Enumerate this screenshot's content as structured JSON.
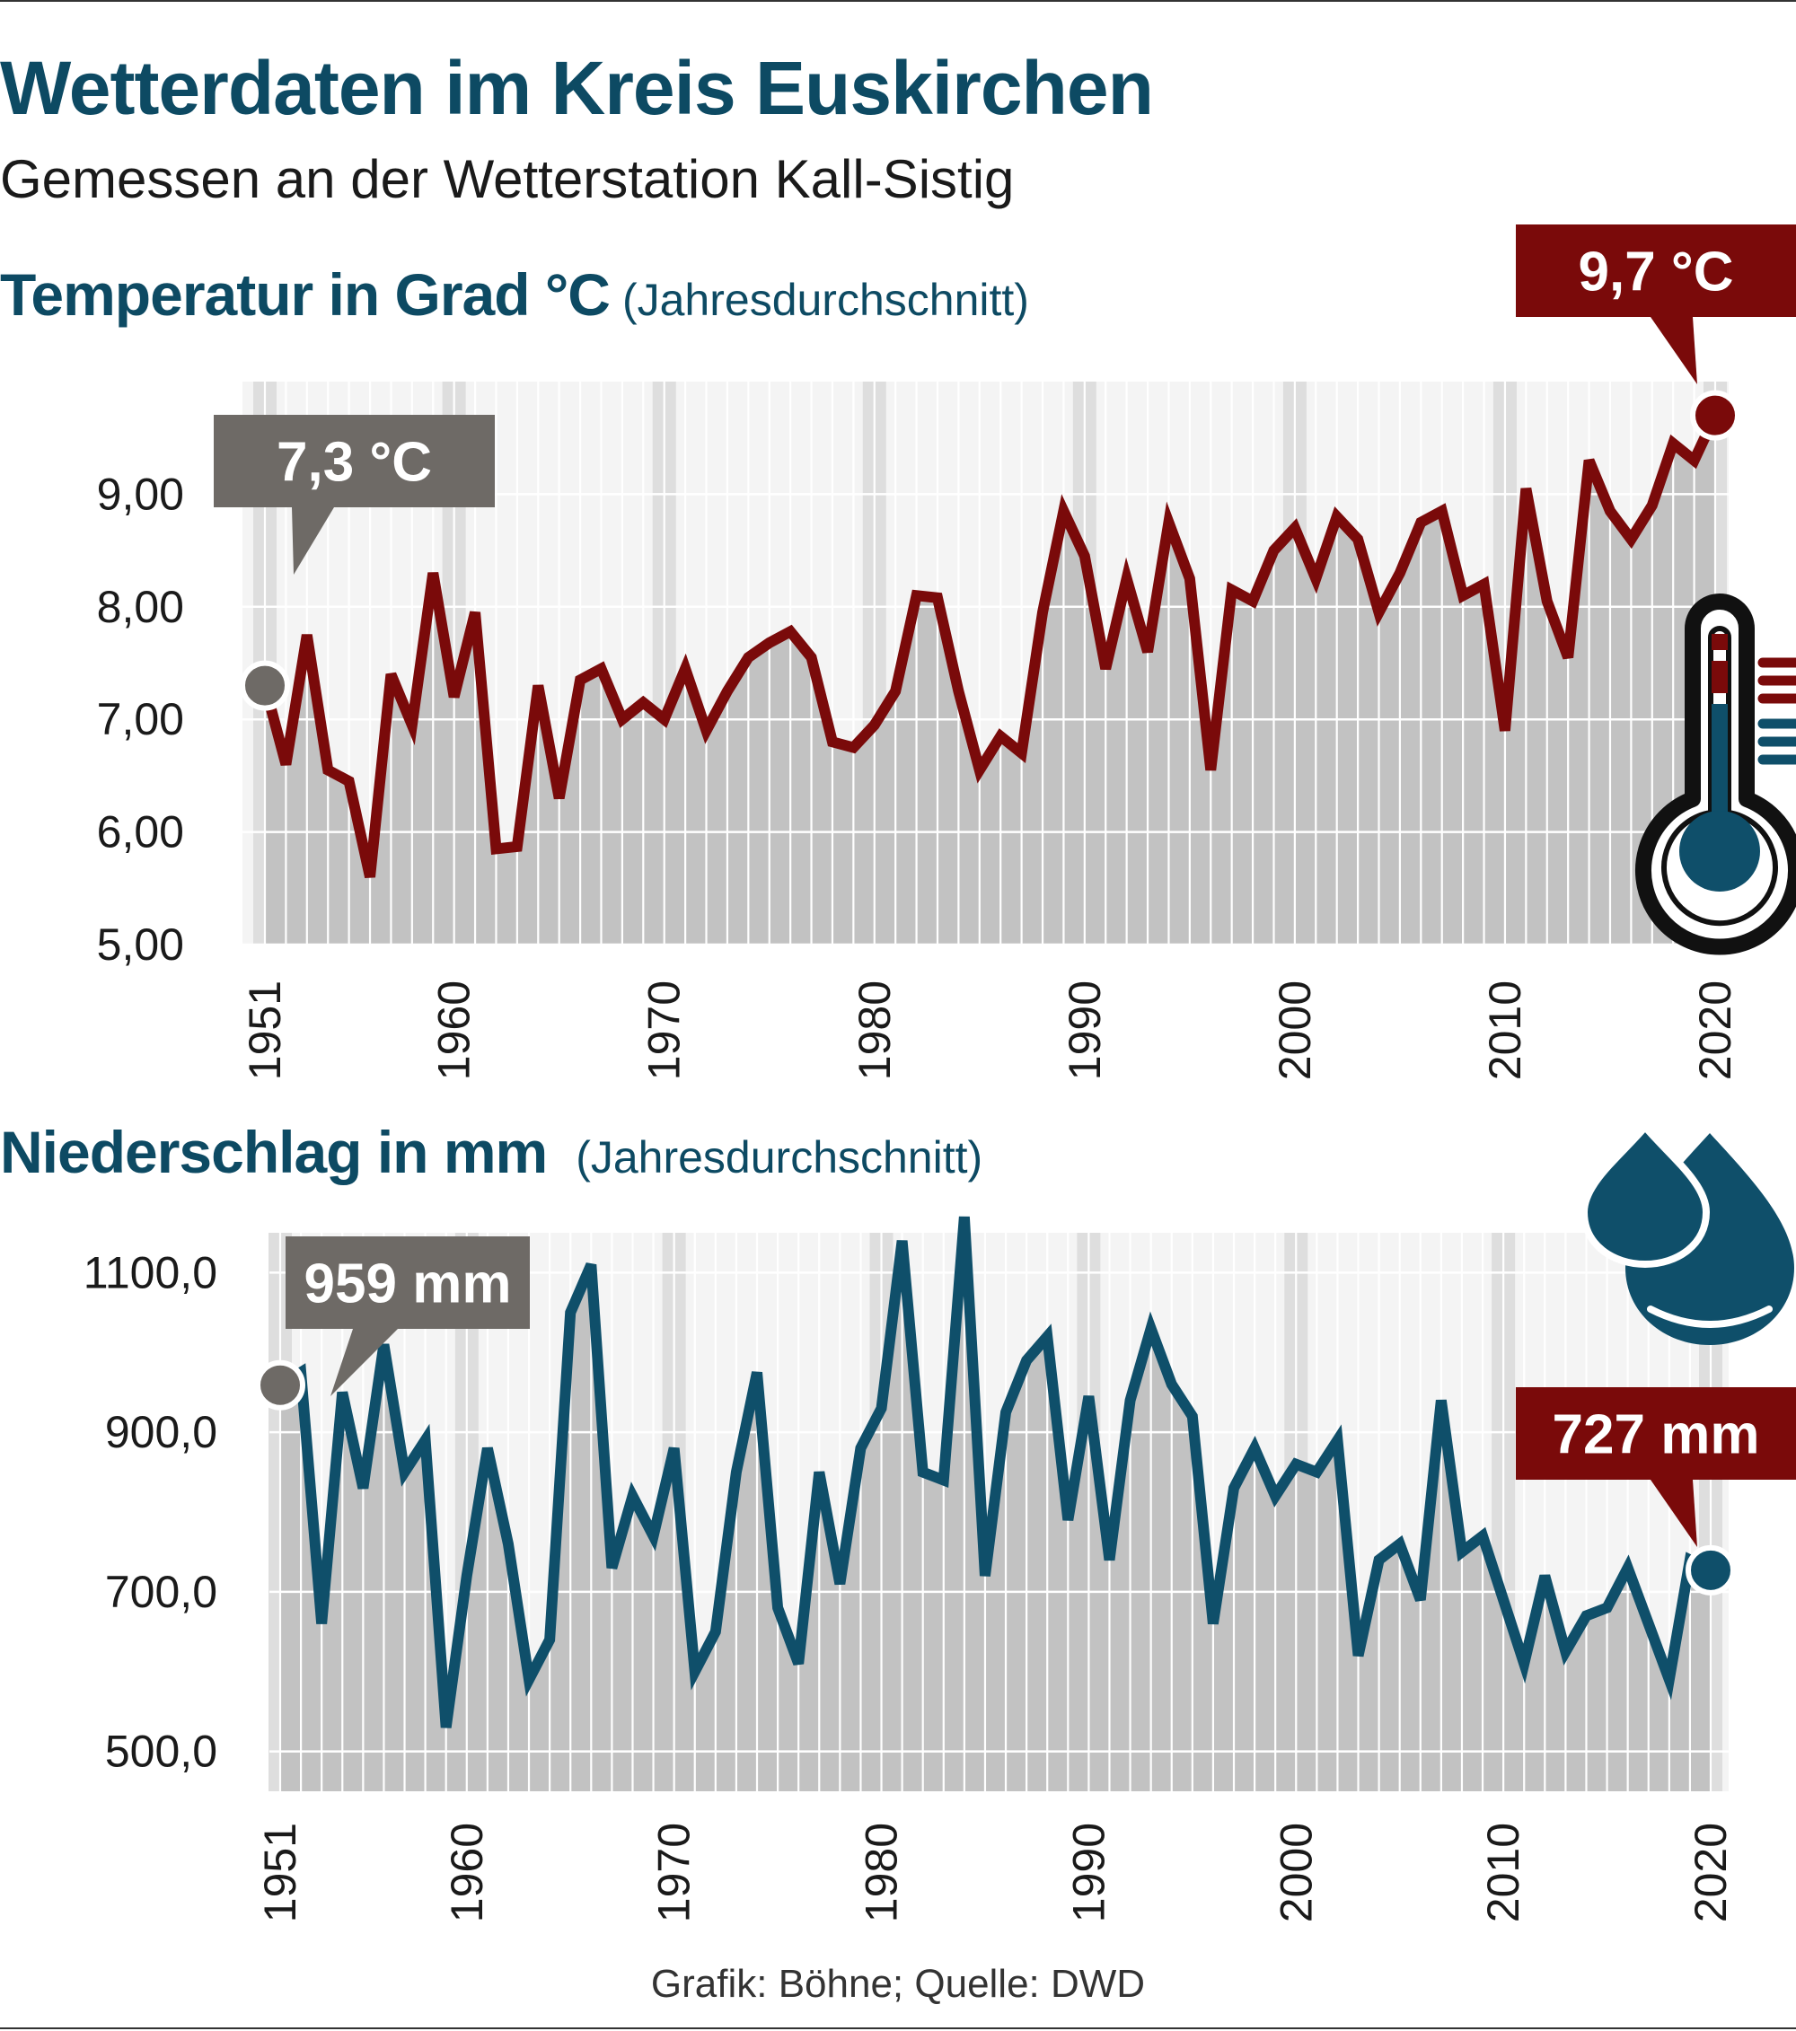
{
  "header": {
    "title": "Wetterdaten im Kreis Euskirchen",
    "subtitle": "Gemessen an der Wetterstation Kall-Sistig"
  },
  "footer": {
    "credit": "Grafik: Böhne; Quelle: DWD"
  },
  "colors": {
    "title": "#0d4a63",
    "temperature_line": "#7a0a0a",
    "precipitation_line": "#0f4f6a",
    "area_fill": "#c2c2c2",
    "callout_gray": "#6e6a66",
    "callout_red": "#7a0a0a"
  },
  "icons": {
    "temperature": "thermometer-icon",
    "precipitation": "water-drops-icon"
  },
  "chart_data": [
    {
      "type": "area",
      "title": "Temperatur in Grad °C",
      "title_note": "(Jahresdurchschnitt)",
      "xlabel": "",
      "ylabel": "",
      "x_start": 1951,
      "x_end": 2020,
      "xticks": [
        "1951",
        "1960",
        "1970",
        "1980",
        "1990",
        "2000",
        "2010",
        "2020"
      ],
      "yticks": [
        "5,00",
        "6,00",
        "7,00",
        "8,00",
        "9,00"
      ],
      "ylim": [
        5,
        10
      ],
      "grid": true,
      "series": [
        {
          "values": [
            7.3,
            6.6,
            7.75,
            6.55,
            6.45,
            5.6,
            7.4,
            6.95,
            8.3,
            7.2,
            7.95,
            5.85,
            5.87,
            7.3,
            6.3,
            7.35,
            7.45,
            7.0,
            7.15,
            7.0,
            7.45,
            6.9,
            7.25,
            7.55,
            7.68,
            7.78,
            7.55,
            6.8,
            6.75,
            6.95,
            7.25,
            8.1,
            8.08,
            7.25,
            6.55,
            6.85,
            6.7,
            7.95,
            8.85,
            8.45,
            7.45,
            8.25,
            7.6,
            8.75,
            8.25,
            6.55,
            8.15,
            8.05,
            8.5,
            8.7,
            8.25,
            8.8,
            8.6,
            7.95,
            8.3,
            8.75,
            8.85,
            8.1,
            8.2,
            6.9,
            9.05,
            8.05,
            7.55,
            9.3,
            8.85,
            8.6,
            8.9,
            9.45,
            9.3,
            9.7
          ]
        }
      ],
      "callouts": [
        {
          "label": "7,3 °C",
          "year": 1951,
          "value": 7.3
        },
        {
          "label": "9,7 °C",
          "year": 2020,
          "value": 9.7
        }
      ]
    },
    {
      "type": "area",
      "title": "Niederschlag in mm",
      "title_note": "(Jahresdurchschnitt)",
      "xlabel": "",
      "ylabel": "",
      "x_start": 1951,
      "x_end": 2020,
      "xticks": [
        "1951",
        "1960",
        "1970",
        "1980",
        "1990",
        "2000",
        "2010",
        "2020"
      ],
      "yticks": [
        "500,0",
        "700,0",
        "900,0",
        "1100,0"
      ],
      "ylim": [
        450,
        1150
      ],
      "grid": true,
      "series": [
        {
          "values": [
            959,
            975,
            660,
            950,
            830,
            1010,
            850,
            890,
            530,
            720,
            880,
            760,
            590,
            640,
            1050,
            1110,
            730,
            820,
            770,
            880,
            600,
            650,
            850,
            975,
            680,
            610,
            850,
            710,
            880,
            930,
            1140,
            850,
            840,
            1170,
            720,
            925,
            990,
            1020,
            790,
            945,
            740,
            940,
            1030,
            960,
            920,
            660,
            830,
            880,
            820,
            860,
            850,
            890,
            620,
            740,
            760,
            690,
            940,
            750,
            770,
            690,
            610,
            720,
            625,
            670,
            680,
            730,
            660,
            590,
            740,
            727
          ]
        }
      ],
      "callouts": [
        {
          "label": "959 mm",
          "year": 1951,
          "value": 959
        },
        {
          "label": "727 mm",
          "year": 2020,
          "value": 727
        }
      ]
    }
  ]
}
